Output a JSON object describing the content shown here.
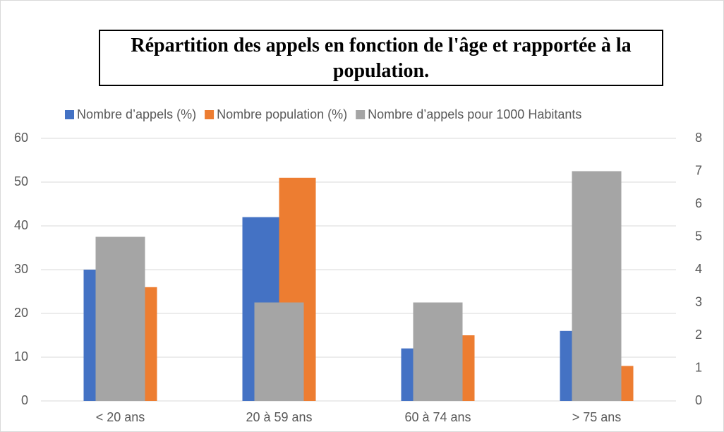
{
  "chart_data": {
    "type": "bar",
    "title": "Répartition des appels en fonction de l'âge et rapportée à la population.",
    "categories": [
      "< 20 ans",
      "20 à 59 ans",
      "60 à 74 ans",
      "> 75 ans"
    ],
    "series": [
      {
        "name": "Nombre d’appels (%)",
        "color": "#4472c4",
        "values": [
          30,
          42,
          12,
          16
        ]
      },
      {
        "name": "Nombre population (%)",
        "color": "#ed7d31",
        "values": [
          26,
          51,
          15,
          8
        ]
      },
      {
        "name": "Nombre d’appels pour 1000 Habitants",
        "color": "#a5a5a5",
        "values": [
          5,
          3,
          3,
          7
        ],
        "axis": "y2"
      }
    ],
    "ylim": [
      0,
      60
    ],
    "yticks": [
      0,
      10,
      20,
      30,
      40,
      50,
      60
    ],
    "y2lim": [
      0,
      8
    ],
    "y2ticks": [
      0,
      1,
      2,
      3,
      4,
      5,
      6,
      7,
      8
    ],
    "grid": true,
    "legend": "top"
  }
}
